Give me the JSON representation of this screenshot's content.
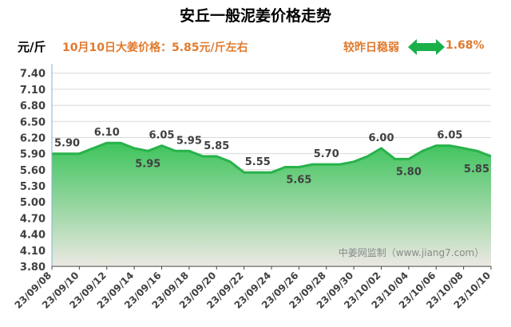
{
  "header": {
    "title": "安丘一般泥姜价格走势",
    "unit": "元/斤",
    "today_text": "10月10日大姜价格：5.85元/斤左右",
    "compare_text": "较昨日稳弱",
    "compare_pct": "1.68%",
    "trend_icon": "double-arrow-icon",
    "trend_color": "#19b04a"
  },
  "watermark": "中姜网监制（www.jiang7.com）",
  "colors": {
    "line": "#28b24b",
    "fill_top": "#3ec45c",
    "fill_bottom": "#ece8e2",
    "label": "#404040"
  },
  "chart_data": {
    "type": "area",
    "x": [
      "23/09/08",
      "23/09/09",
      "23/09/10",
      "23/09/11",
      "23/09/12",
      "23/09/13",
      "23/09/14",
      "23/09/15",
      "23/09/16",
      "23/09/17",
      "23/09/18",
      "23/09/19",
      "23/09/20",
      "23/09/21",
      "23/09/22",
      "23/09/23",
      "23/09/24",
      "23/09/25",
      "23/09/26",
      "23/09/27",
      "23/09/28",
      "23/09/29",
      "23/09/30",
      "23/10/01",
      "23/10/02",
      "23/10/03",
      "23/10/04",
      "23/10/05",
      "23/10/06",
      "23/10/07",
      "23/10/08",
      "23/10/09",
      "23/10/10"
    ],
    "values": [
      5.9,
      5.9,
      5.9,
      6.0,
      6.1,
      6.1,
      6.0,
      5.95,
      6.05,
      5.95,
      5.95,
      5.85,
      5.85,
      5.75,
      5.55,
      5.55,
      5.55,
      5.65,
      5.65,
      5.7,
      5.7,
      5.7,
      5.75,
      5.85,
      6.0,
      5.8,
      5.8,
      5.95,
      6.05,
      6.05,
      6.0,
      5.95,
      5.85
    ],
    "data_labels": [
      {
        "x": "23/09/08",
        "text": "5.90"
      },
      {
        "x": "23/09/12",
        "text": "6.10"
      },
      {
        "x": "23/09/15",
        "text": "5.95"
      },
      {
        "x": "23/09/16",
        "text": "6.05"
      },
      {
        "x": "23/09/18",
        "text": "5.95"
      },
      {
        "x": "23/09/20",
        "text": "5.85"
      },
      {
        "x": "23/09/23",
        "text": "5.55"
      },
      {
        "x": "23/09/26",
        "text": "5.65"
      },
      {
        "x": "23/09/28",
        "text": "5.70"
      },
      {
        "x": "23/10/02",
        "text": "6.00"
      },
      {
        "x": "23/10/04",
        "text": "5.80"
      },
      {
        "x": "23/10/07",
        "text": "6.05"
      },
      {
        "x": "23/10/10",
        "text": "5.85"
      }
    ],
    "x_tick_labels": [
      "23/09/08",
      "23/09/10",
      "23/09/12",
      "23/09/14",
      "23/09/16",
      "23/09/18",
      "23/09/20",
      "23/09/22",
      "23/09/24",
      "23/09/26",
      "23/09/28",
      "23/09/30",
      "23/10/02",
      "23/10/04",
      "23/10/06",
      "23/10/08",
      "23/10/10"
    ],
    "y_ticks": [
      "3.80",
      "4.10",
      "4.40",
      "4.70",
      "5.00",
      "5.30",
      "5.60",
      "5.90",
      "6.20",
      "6.50",
      "6.80",
      "7.10",
      "7.40"
    ],
    "ylim": [
      3.8,
      7.5
    ],
    "grid": true
  }
}
